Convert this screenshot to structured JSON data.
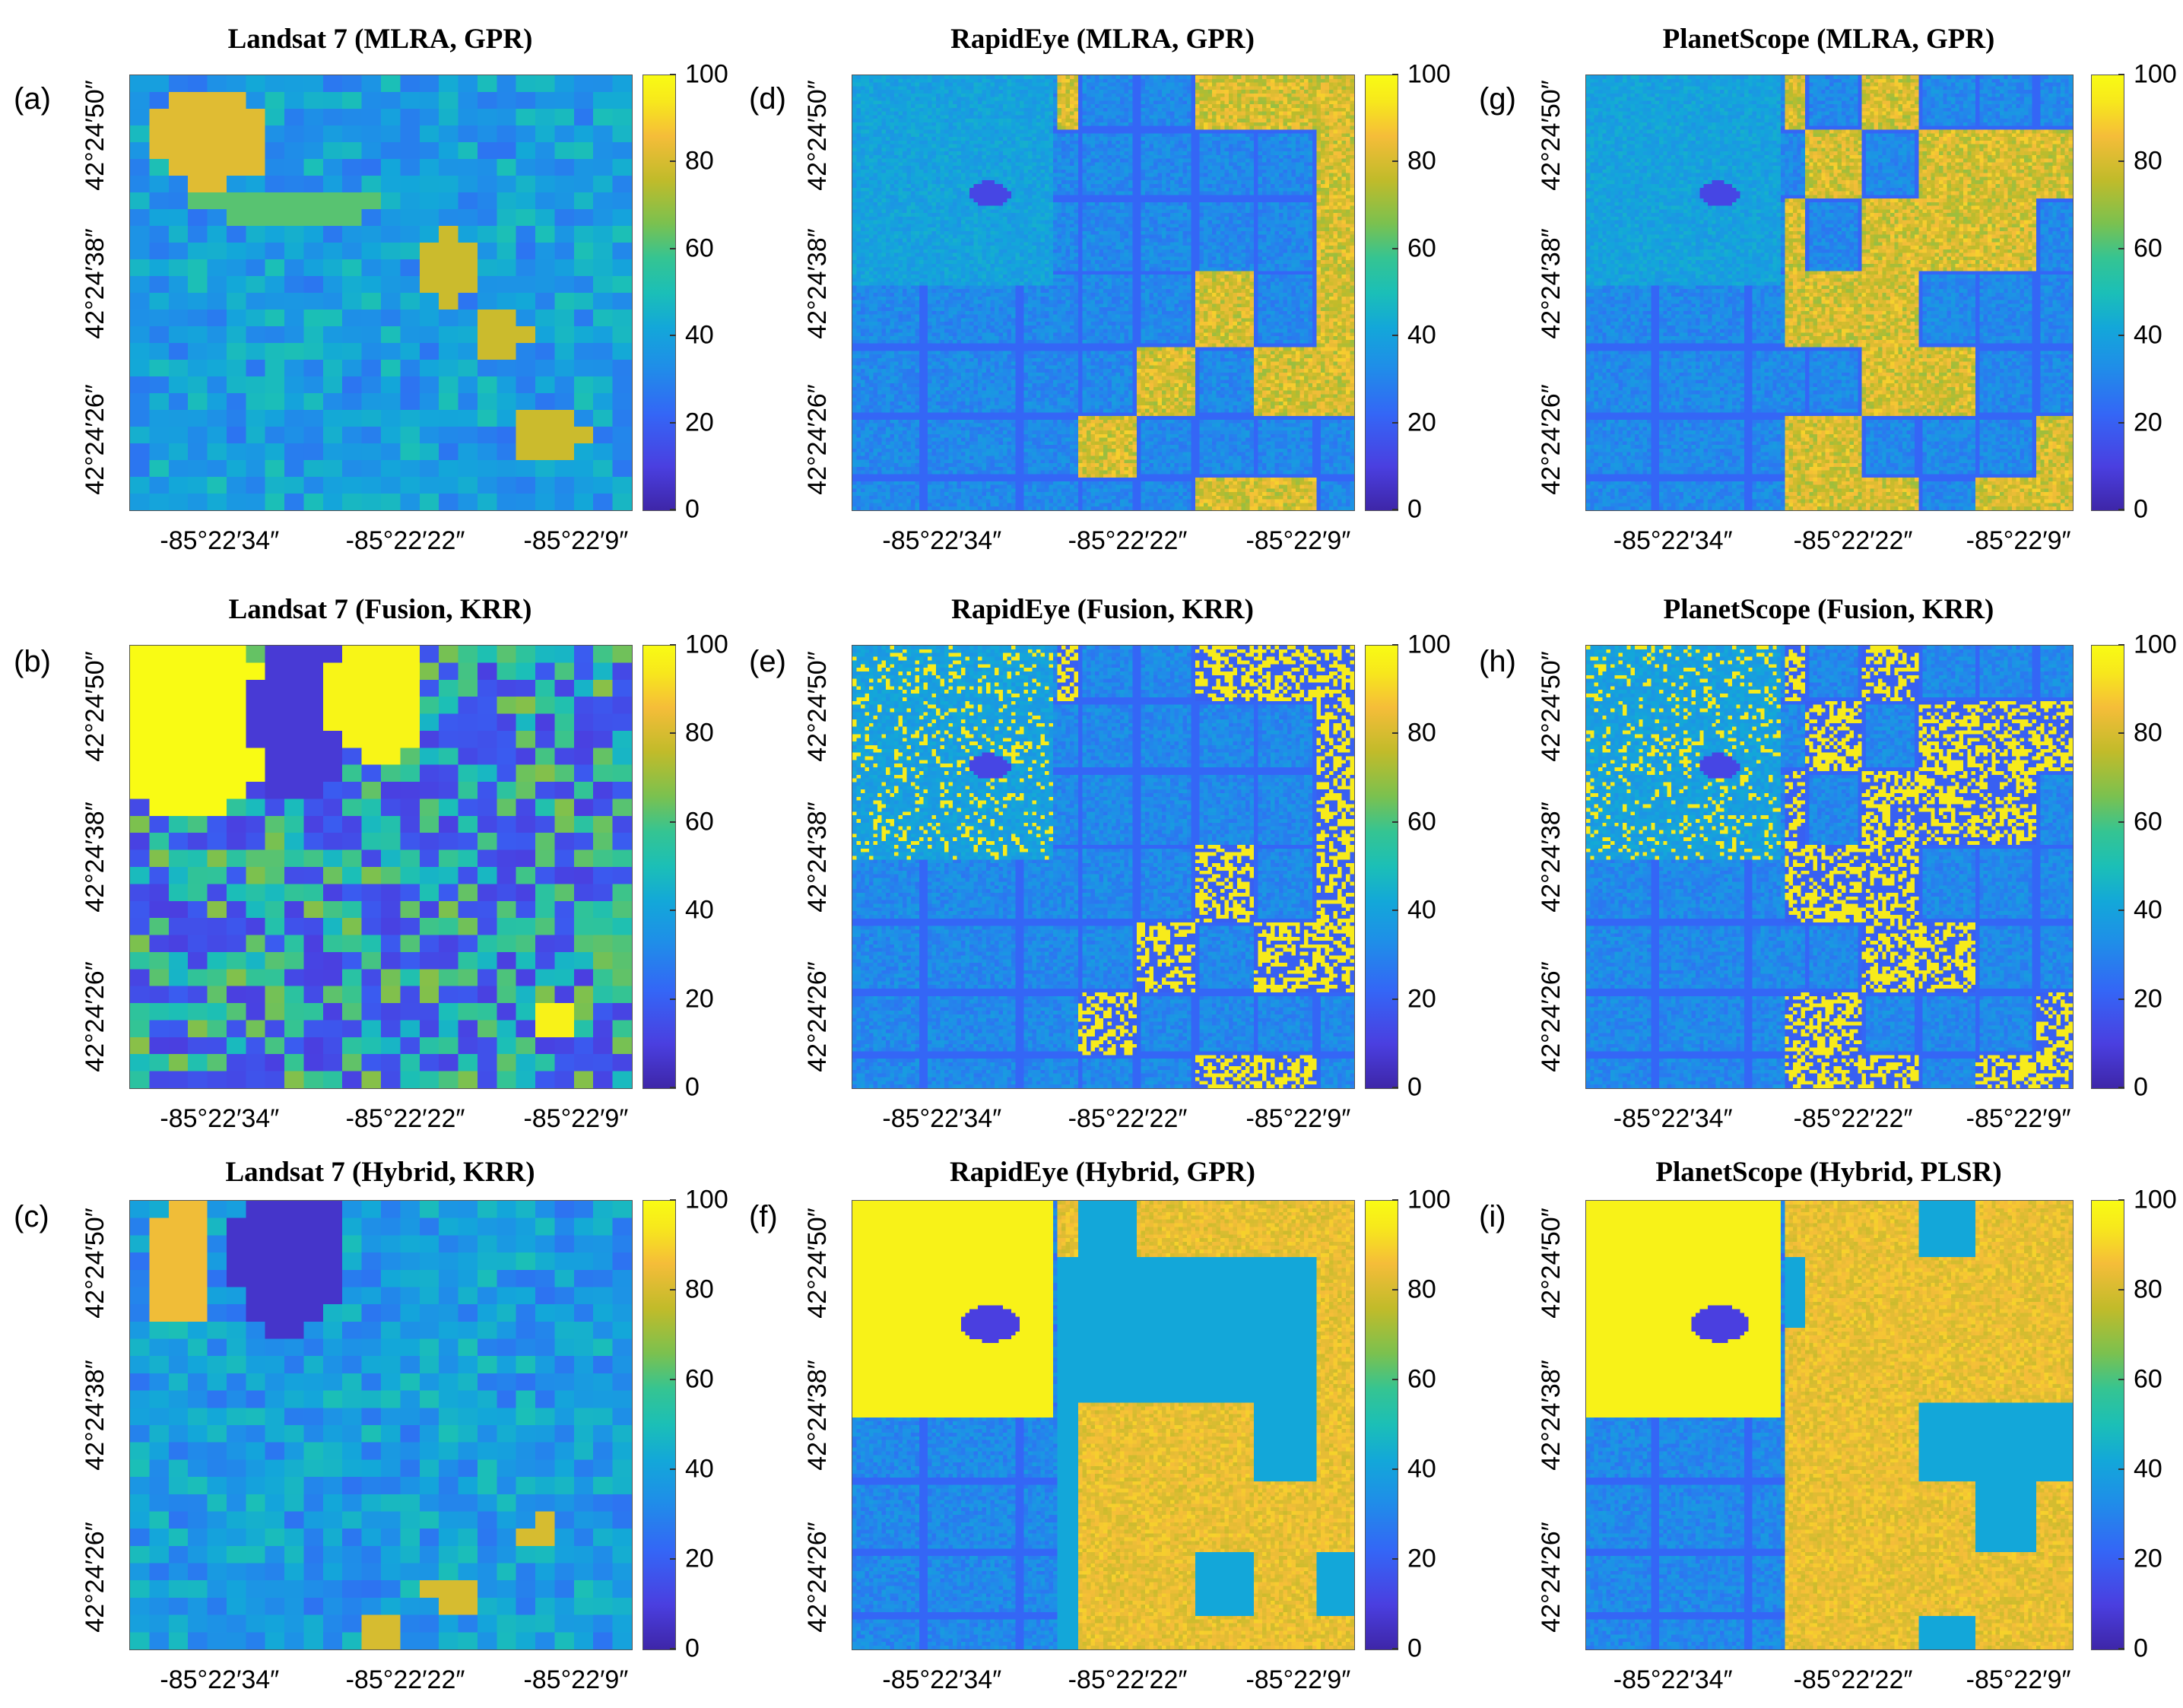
{
  "colorbar": {
    "ticks": [
      "0",
      "20",
      "40",
      "60",
      "80",
      "100"
    ]
  },
  "palette": {
    "low": "#3e26a8",
    "mid": "#1bbfb7",
    "high": "#f9fb14"
  },
  "panels": [
    {
      "label": "(a)",
      "title": "Landsat 7 (MLRA, GPR)",
      "yticks": [
        "42°24′50″",
        "42°24′38″",
        "42°24′26″"
      ],
      "xticks": [
        "-85°22′34″",
        "-85°22′22″",
        "-85°22′9″"
      ]
    },
    {
      "label": "(d)",
      "title": "RapidEye (MLRA, GPR)",
      "yticks": [
        "42°24′50″",
        "42°24′38″",
        "42°24′26″"
      ],
      "xticks": [
        "-85°22′34″",
        "-85°22′22″",
        "-85°22′9″"
      ]
    },
    {
      "label": "(g)",
      "title": "PlanetScope (MLRA, GPR)",
      "yticks": [
        "42°24′50″",
        "42°24′38″",
        "42°24′26″"
      ],
      "xticks": [
        "-85°22′34″",
        "-85°22′22″",
        "-85°22′9″"
      ]
    },
    {
      "label": "(b)",
      "title": "Landsat 7 (Fusion, KRR)",
      "yticks": [
        "42°24′50″",
        "42°24′38″",
        "42°24′26″"
      ],
      "xticks": [
        "-85°22′34″",
        "-85°22′22″",
        "-85°22′9″"
      ]
    },
    {
      "label": "(e)",
      "title": "RapidEye (Fusion, KRR)",
      "yticks": [
        "42°24′50″",
        "42°24′38″",
        "42°24′26″"
      ],
      "xticks": [
        "-85°22′34″",
        "-85°22′22″",
        "-85°22′9″"
      ]
    },
    {
      "label": "(h)",
      "title": "PlanetScope (Fusion, KRR)",
      "yticks": [
        "42°24′50″",
        "42°24′38″",
        "42°24′26″"
      ],
      "xticks": [
        "-85°22′34″",
        "-85°22′22″",
        "-85°22′9″"
      ]
    },
    {
      "label": "(c)",
      "title": "Landsat 7 (Hybrid, KRR)",
      "yticks": [
        "42°24′50″",
        "42°24′38″",
        "42°24′26″"
      ],
      "xticks": [
        "-85°22′34″",
        "-85°22′22″",
        "-85°22′9″"
      ]
    },
    {
      "label": "(f)",
      "title": "RapidEye (Hybrid, GPR)",
      "yticks": [
        "42°24′50″",
        "42°24′38″",
        "42°24′26″"
      ],
      "xticks": [
        "-85°22′34″",
        "-85°22′22″",
        "-85°22′9″"
      ]
    },
    {
      "label": "(i)",
      "title": "PlanetScope (Hybrid, PLSR)",
      "yticks": [
        "42°24′50″",
        "42°24′38″",
        "42°24′26″"
      ],
      "xticks": [
        "-85°22′34″",
        "-85°22′22″",
        "-85°22′9″"
      ]
    }
  ]
}
